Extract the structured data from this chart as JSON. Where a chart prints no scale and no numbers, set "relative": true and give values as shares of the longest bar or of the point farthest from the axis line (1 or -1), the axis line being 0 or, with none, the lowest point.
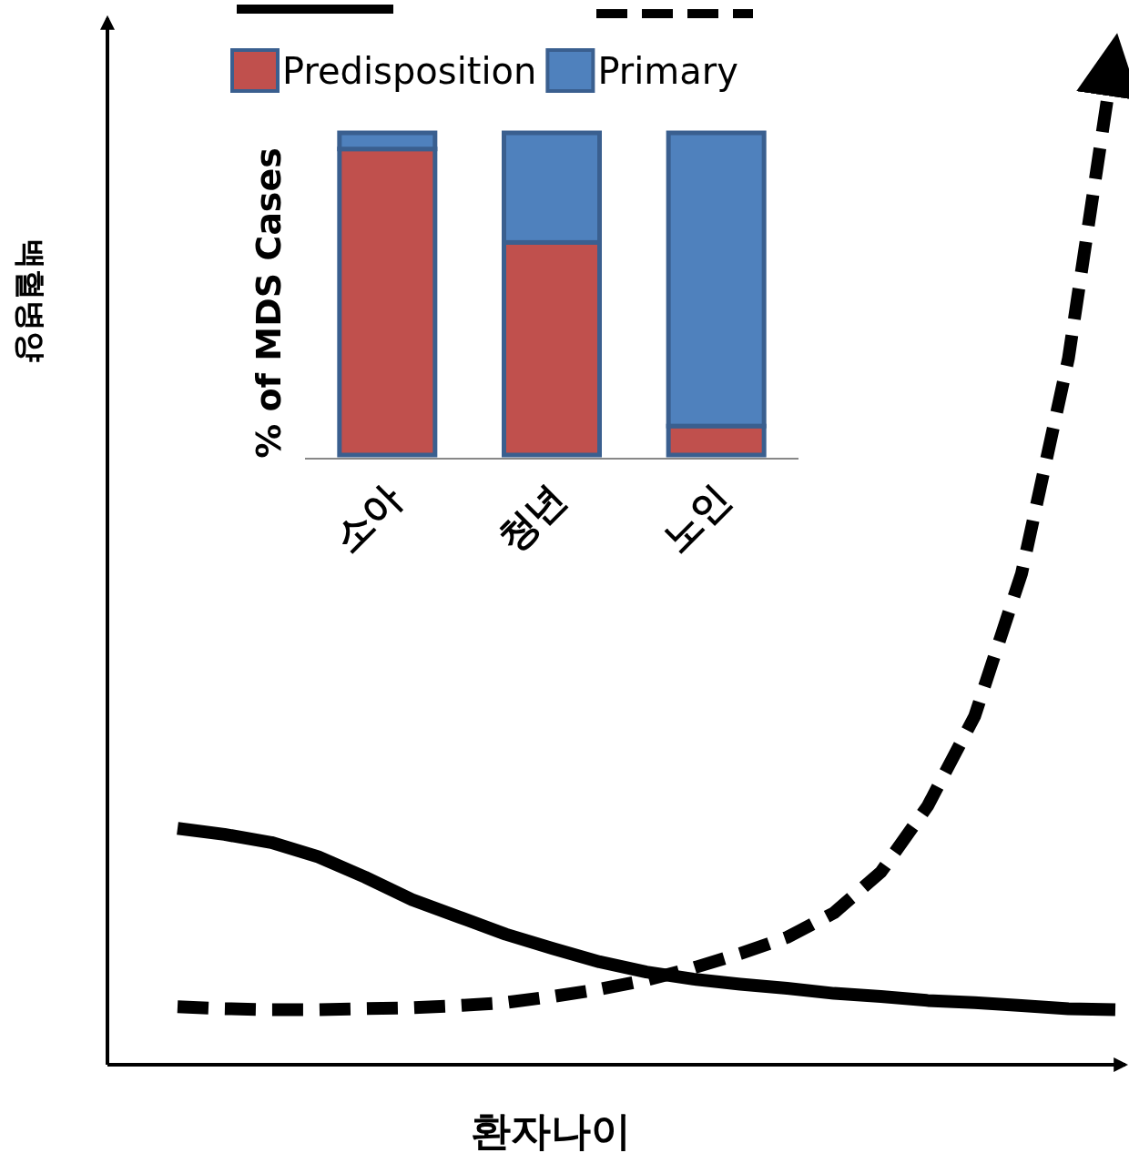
{
  "chart_data": [
    {
      "type": "line",
      "relative": true,
      "xlabel": "환자나이",
      "ylabel": "백혈병양",
      "categories": [
        null,
        null,
        null,
        null,
        null,
        null,
        null,
        null,
        null,
        null,
        null,
        null,
        null,
        null,
        null,
        null,
        null,
        null,
        null,
        null,
        null
      ],
      "series": [
        {
          "color": "#000000",
          "line_style": "solid",
          "values": [
            0.232,
            0.226,
            0.218,
            0.204,
            0.184,
            0.162,
            0.145,
            0.128,
            0.114,
            0.101,
            0.091,
            0.084,
            0.079,
            0.075,
            0.07,
            0.067,
            0.063,
            0.061,
            0.058,
            0.055,
            0.054
          ]
        },
        {
          "color": "#000000",
          "line_style": "dashed",
          "values": [
            0.057,
            0.055,
            0.054,
            0.054,
            0.055,
            0.056,
            0.058,
            0.061,
            0.067,
            0.074,
            0.083,
            0.095,
            0.109,
            0.125,
            0.149,
            0.189,
            0.254,
            0.342,
            0.482,
            0.693,
            1
          ]
        }
      ]
    },
    {
      "type": "bar",
      "stacked": true,
      "relative": true,
      "ylabel": "% of MDS Cases",
      "categories": [
        "소아",
        "청년",
        "노인"
      ],
      "legend": "top",
      "series": [
        {
          "name": "Predisposition",
          "color": "#c0504d",
          "values": [
            0.95,
            0.66,
            0.09
          ]
        },
        {
          "name": "Primary",
          "color": "#4f81bd",
          "values": [
            0.05,
            0.34,
            0.91
          ]
        }
      ]
    }
  ]
}
